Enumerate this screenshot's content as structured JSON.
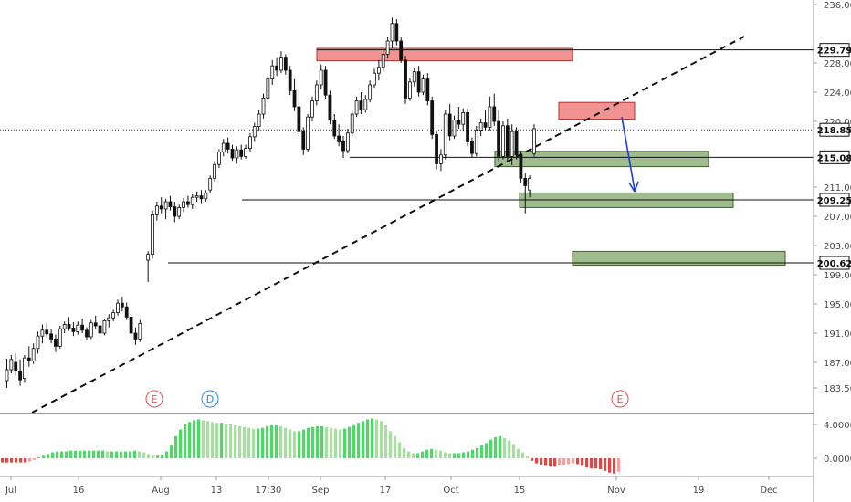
{
  "chart_data": {
    "type": "candlestick",
    "price_axis": {
      "ticks": [
        "236.00",
        "229.79",
        "228.00",
        "224.00",
        "220.00",
        "218.85",
        "215.08",
        "211.00",
        "209.25",
        "207.00",
        "203.00",
        "200.62",
        "199.00",
        "195.00",
        "191.00",
        "187.00",
        "183.50"
      ],
      "range": [
        182.5,
        236.5
      ]
    },
    "time_axis": {
      "labels": [
        "Jul",
        "16",
        "Aug",
        "13",
        "17:30",
        "Sep",
        "17",
        "Oct",
        "15",
        "Nov",
        "19",
        "Dec"
      ]
    },
    "price_levels": [
      {
        "label": "229.79",
        "value": 229.79
      },
      {
        "label": "218.85",
        "value": 218.85,
        "style": "dotted"
      },
      {
        "label": "215.08",
        "value": 215.08
      },
      {
        "label": "209.25",
        "value": 209.25
      },
      {
        "label": "200.62",
        "value": 200.62
      }
    ],
    "supply_zones": [
      {
        "low": 228.3,
        "high": 230.0
      },
      {
        "low": 220.3,
        "high": 222.6
      }
    ],
    "demand_zones": [
      {
        "low": 213.8,
        "high": 215.9
      },
      {
        "low": 208.2,
        "high": 210.2
      },
      {
        "low": 200.3,
        "high": 202.2
      }
    ],
    "trendline": {
      "from": [
        20.0,
        181.5
      ],
      "to": [
        154.0,
        230.6
      ],
      "style": "dashed"
    },
    "projection_arrow": {
      "from": [
        144.0,
        219.2
      ],
      "to": [
        146.5,
        208.9
      ],
      "color": "#1c3fd6"
    },
    "events": [
      {
        "label": "E",
        "color": "#e0505a"
      },
      {
        "label": "D",
        "color": "#2a8ee6"
      },
      {
        "label": "E",
        "color": "#e0505a"
      }
    ],
    "oscillator": {
      "ticks": [
        "4.0000",
        "0.0000"
      ],
      "range": [
        -2.5,
        5.5
      ]
    },
    "candles": [
      {
        "o": 184.5,
        "h": 187.5,
        "l": 183.5,
        "c": 186.0
      },
      {
        "o": 186.0,
        "h": 188.0,
        "l": 185.5,
        "c": 187.4
      },
      {
        "o": 187.0,
        "h": 188.3,
        "l": 185.2,
        "c": 185.8
      },
      {
        "o": 185.8,
        "h": 187.4,
        "l": 183.8,
        "c": 184.6
      },
      {
        "o": 184.8,
        "h": 188.0,
        "l": 184.2,
        "c": 187.6
      },
      {
        "o": 187.6,
        "h": 189.2,
        "l": 186.4,
        "c": 187.2
      },
      {
        "o": 187.2,
        "h": 189.6,
        "l": 186.8,
        "c": 188.9
      },
      {
        "o": 188.9,
        "h": 191.2,
        "l": 188.2,
        "c": 190.6
      },
      {
        "o": 190.6,
        "h": 192.2,
        "l": 189.6,
        "c": 191.4
      },
      {
        "o": 191.4,
        "h": 192.4,
        "l": 190.4,
        "c": 190.9
      },
      {
        "o": 190.9,
        "h": 191.6,
        "l": 189.6,
        "c": 190.2
      },
      {
        "o": 190.2,
        "h": 190.8,
        "l": 188.4,
        "c": 189.2
      },
      {
        "o": 189.2,
        "h": 192.0,
        "l": 188.9,
        "c": 191.6
      },
      {
        "o": 191.6,
        "h": 192.6,
        "l": 191.0,
        "c": 192.2
      },
      {
        "o": 192.2,
        "h": 193.2,
        "l": 191.3,
        "c": 191.7
      },
      {
        "o": 191.7,
        "h": 192.5,
        "l": 190.6,
        "c": 191.2
      },
      {
        "o": 191.2,
        "h": 192.6,
        "l": 190.8,
        "c": 192.1
      },
      {
        "o": 192.1,
        "h": 193.0,
        "l": 191.0,
        "c": 191.4
      },
      {
        "o": 191.4,
        "h": 191.8,
        "l": 190.0,
        "c": 190.5
      },
      {
        "o": 190.5,
        "h": 192.8,
        "l": 190.2,
        "c": 192.4
      },
      {
        "o": 192.4,
        "h": 193.4,
        "l": 191.6,
        "c": 192.0
      },
      {
        "o": 192.0,
        "h": 192.6,
        "l": 190.6,
        "c": 191.0
      },
      {
        "o": 191.0,
        "h": 193.0,
        "l": 190.7,
        "c": 192.7
      },
      {
        "o": 192.7,
        "h": 193.6,
        "l": 191.8,
        "c": 193.1
      },
      {
        "o": 193.1,
        "h": 194.2,
        "l": 192.6,
        "c": 193.8
      },
      {
        "o": 193.8,
        "h": 195.6,
        "l": 193.4,
        "c": 195.1
      },
      {
        "o": 195.1,
        "h": 196.0,
        "l": 194.0,
        "c": 194.6
      },
      {
        "o": 194.6,
        "h": 195.2,
        "l": 192.8,
        "c": 193.2
      },
      {
        "o": 193.2,
        "h": 193.8,
        "l": 190.6,
        "c": 191.0
      },
      {
        "o": 191.0,
        "h": 191.8,
        "l": 189.4,
        "c": 190.2
      },
      {
        "o": 190.2,
        "h": 192.8,
        "l": 189.8,
        "c": 192.3
      },
      {
        "o": 201.0,
        "h": 202.2,
        "l": 198.0,
        "c": 201.8
      },
      {
        "o": 201.8,
        "h": 207.8,
        "l": 201.2,
        "c": 207.2
      },
      {
        "o": 207.2,
        "h": 209.0,
        "l": 206.4,
        "c": 208.4
      },
      {
        "o": 208.4,
        "h": 209.6,
        "l": 207.4,
        "c": 208.0
      },
      {
        "o": 208.0,
        "h": 209.4,
        "l": 206.6,
        "c": 209.0
      },
      {
        "o": 209.0,
        "h": 209.8,
        "l": 207.8,
        "c": 208.3
      },
      {
        "o": 208.3,
        "h": 209.0,
        "l": 206.2,
        "c": 207.0
      },
      {
        "o": 207.0,
        "h": 208.6,
        "l": 206.6,
        "c": 208.2
      },
      {
        "o": 208.2,
        "h": 209.5,
        "l": 207.6,
        "c": 209.0
      },
      {
        "o": 209.0,
        "h": 209.8,
        "l": 208.2,
        "c": 208.6
      },
      {
        "o": 208.6,
        "h": 210.0,
        "l": 208.0,
        "c": 209.6
      },
      {
        "o": 209.6,
        "h": 210.4,
        "l": 209.0,
        "c": 209.8
      },
      {
        "o": 209.8,
        "h": 210.6,
        "l": 208.8,
        "c": 209.4
      },
      {
        "o": 209.4,
        "h": 210.6,
        "l": 209.0,
        "c": 210.2
      },
      {
        "o": 210.6,
        "h": 212.6,
        "l": 210.2,
        "c": 212.2
      },
      {
        "o": 212.2,
        "h": 214.6,
        "l": 211.8,
        "c": 214.1
      },
      {
        "o": 214.1,
        "h": 216.2,
        "l": 213.6,
        "c": 215.8
      },
      {
        "o": 215.8,
        "h": 217.6,
        "l": 215.2,
        "c": 217.0
      },
      {
        "o": 217.0,
        "h": 217.8,
        "l": 215.6,
        "c": 216.2
      },
      {
        "o": 216.2,
        "h": 216.8,
        "l": 214.6,
        "c": 215.0
      },
      {
        "o": 215.0,
        "h": 216.6,
        "l": 214.2,
        "c": 216.1
      },
      {
        "o": 216.1,
        "h": 216.8,
        "l": 214.8,
        "c": 215.2
      },
      {
        "o": 215.2,
        "h": 216.8,
        "l": 214.9,
        "c": 216.3
      },
      {
        "o": 216.3,
        "h": 218.4,
        "l": 215.8,
        "c": 217.9
      },
      {
        "o": 217.9,
        "h": 219.8,
        "l": 217.2,
        "c": 219.3
      },
      {
        "o": 219.3,
        "h": 221.6,
        "l": 218.6,
        "c": 221.0
      },
      {
        "o": 221.0,
        "h": 223.8,
        "l": 220.4,
        "c": 223.2
      },
      {
        "o": 223.2,
        "h": 226.2,
        "l": 222.6,
        "c": 225.8
      },
      {
        "o": 225.8,
        "h": 228.4,
        "l": 225.0,
        "c": 227.6
      },
      {
        "o": 227.6,
        "h": 228.8,
        "l": 226.2,
        "c": 227.0
      },
      {
        "o": 227.0,
        "h": 229.6,
        "l": 226.6,
        "c": 228.8
      },
      {
        "o": 228.8,
        "h": 229.2,
        "l": 226.4,
        "c": 227.0
      },
      {
        "o": 227.0,
        "h": 227.6,
        "l": 223.6,
        "c": 224.2
      },
      {
        "o": 224.2,
        "h": 225.8,
        "l": 221.4,
        "c": 222.0
      },
      {
        "o": 222.0,
        "h": 224.2,
        "l": 218.0,
        "c": 218.6
      },
      {
        "o": 218.6,
        "h": 219.2,
        "l": 215.4,
        "c": 216.2
      },
      {
        "o": 216.2,
        "h": 221.0,
        "l": 215.8,
        "c": 220.6
      },
      {
        "o": 220.6,
        "h": 223.4,
        "l": 220.0,
        "c": 222.8
      },
      {
        "o": 222.8,
        "h": 225.6,
        "l": 222.2,
        "c": 225.0
      },
      {
        "o": 225.0,
        "h": 227.8,
        "l": 224.4,
        "c": 227.0
      },
      {
        "o": 227.0,
        "h": 227.6,
        "l": 223.0,
        "c": 223.6
      },
      {
        "o": 223.6,
        "h": 224.2,
        "l": 219.6,
        "c": 220.2
      },
      {
        "o": 220.2,
        "h": 221.0,
        "l": 217.6,
        "c": 218.0
      },
      {
        "o": 218.0,
        "h": 219.6,
        "l": 216.6,
        "c": 217.2
      },
      {
        "o": 217.2,
        "h": 218.0,
        "l": 215.0,
        "c": 216.0
      },
      {
        "o": 216.0,
        "h": 219.0,
        "l": 215.6,
        "c": 218.4
      },
      {
        "o": 218.4,
        "h": 221.6,
        "l": 218.0,
        "c": 221.0
      },
      {
        "o": 221.0,
        "h": 223.4,
        "l": 220.6,
        "c": 222.8
      },
      {
        "o": 222.8,
        "h": 224.0,
        "l": 221.0,
        "c": 221.6
      },
      {
        "o": 221.6,
        "h": 223.6,
        "l": 221.2,
        "c": 223.0
      },
      {
        "o": 223.0,
        "h": 225.6,
        "l": 222.6,
        "c": 225.0
      },
      {
        "o": 225.0,
        "h": 227.2,
        "l": 224.6,
        "c": 226.6
      },
      {
        "o": 226.6,
        "h": 228.4,
        "l": 225.6,
        "c": 227.4
      },
      {
        "o": 227.4,
        "h": 229.8,
        "l": 226.8,
        "c": 229.2
      },
      {
        "o": 229.2,
        "h": 231.6,
        "l": 228.6,
        "c": 231.0
      },
      {
        "o": 231.0,
        "h": 234.2,
        "l": 230.0,
        "c": 233.4
      },
      {
        "o": 233.4,
        "h": 234.0,
        "l": 230.4,
        "c": 231.0
      },
      {
        "o": 231.0,
        "h": 231.6,
        "l": 228.0,
        "c": 228.4
      },
      {
        "o": 228.4,
        "h": 229.0,
        "l": 222.4,
        "c": 223.2
      },
      {
        "o": 223.2,
        "h": 226.0,
        "l": 222.8,
        "c": 225.4
      },
      {
        "o": 225.4,
        "h": 227.4,
        "l": 224.8,
        "c": 226.8
      },
      {
        "o": 226.8,
        "h": 227.6,
        "l": 223.4,
        "c": 224.0
      },
      {
        "o": 224.0,
        "h": 226.4,
        "l": 223.6,
        "c": 225.8
      },
      {
        "o": 225.8,
        "h": 226.6,
        "l": 222.2,
        "c": 222.8
      },
      {
        "o": 222.8,
        "h": 223.4,
        "l": 217.6,
        "c": 218.2
      },
      {
        "o": 218.2,
        "h": 218.8,
        "l": 213.4,
        "c": 214.2
      },
      {
        "o": 214.2,
        "h": 216.2,
        "l": 213.2,
        "c": 215.4
      },
      {
        "o": 215.4,
        "h": 221.6,
        "l": 214.8,
        "c": 221.0
      },
      {
        "o": 221.0,
        "h": 222.4,
        "l": 217.4,
        "c": 218.0
      },
      {
        "o": 218.0,
        "h": 220.8,
        "l": 217.6,
        "c": 220.2
      },
      {
        "o": 220.2,
        "h": 222.0,
        "l": 219.0,
        "c": 219.6
      },
      {
        "o": 219.6,
        "h": 221.8,
        "l": 218.6,
        "c": 221.2
      },
      {
        "o": 221.2,
        "h": 221.8,
        "l": 216.6,
        "c": 217.2
      },
      {
        "o": 217.2,
        "h": 217.8,
        "l": 215.0,
        "c": 215.6
      },
      {
        "o": 215.6,
        "h": 219.4,
        "l": 215.2,
        "c": 218.8
      },
      {
        "o": 218.8,
        "h": 220.4,
        "l": 218.0,
        "c": 219.8
      },
      {
        "o": 219.8,
        "h": 221.6,
        "l": 218.8,
        "c": 219.2
      },
      {
        "o": 219.2,
        "h": 223.4,
        "l": 218.8,
        "c": 222.0
      },
      {
        "o": 222.0,
        "h": 223.8,
        "l": 219.4,
        "c": 220.0
      },
      {
        "o": 220.0,
        "h": 221.6,
        "l": 214.4,
        "c": 215.2
      },
      {
        "o": 215.2,
        "h": 220.0,
        "l": 214.8,
        "c": 219.4
      },
      {
        "o": 219.4,
        "h": 220.4,
        "l": 214.6,
        "c": 215.2
      },
      {
        "o": 215.2,
        "h": 219.6,
        "l": 214.0,
        "c": 218.6
      },
      {
        "o": 218.6,
        "h": 219.2,
        "l": 214.8,
        "c": 215.4
      },
      {
        "o": 215.4,
        "h": 216.0,
        "l": 211.6,
        "c": 212.2
      },
      {
        "o": 212.2,
        "h": 213.0,
        "l": 207.4,
        "c": 211.2
      },
      {
        "o": 210.6,
        "h": 212.6,
        "l": 209.6,
        "c": 212.2
      },
      {
        "o": 215.6,
        "h": 219.6,
        "l": 215.2,
        "c": 219.0
      }
    ],
    "oscillator_values": [
      -0.5,
      -0.5,
      -0.5,
      -0.5,
      -0.5,
      -0.5,
      -0.4,
      -0.2,
      0.1,
      0.3,
      0.5,
      0.7,
      0.8,
      0.8,
      0.8,
      0.9,
      0.9,
      0.9,
      0.9,
      0.9,
      0.9,
      0.9,
      0.9,
      0.8,
      0.8,
      0.8,
      0.8,
      0.8,
      0.8,
      0.9,
      0.8,
      0.7,
      0.5,
      0.3,
      0.3,
      0.4,
      0.8,
      1.5,
      2.6,
      3.4,
      4.0,
      4.3,
      4.5,
      4.6,
      4.5,
      4.4,
      4.3,
      4.2,
      4.2,
      4.1,
      4.0,
      3.9,
      3.8,
      3.7,
      3.6,
      3.5,
      3.5,
      3.6,
      3.8,
      3.9,
      3.9,
      3.8,
      3.6,
      3.4,
      3.2,
      3.2,
      3.4,
      3.6,
      3.7,
      3.8,
      3.8,
      3.7,
      3.6,
      3.5,
      3.4,
      3.5,
      3.7,
      3.9,
      4.2,
      4.4,
      4.6,
      4.7,
      4.6,
      4.4,
      3.9,
      3.2,
      2.6,
      1.9,
      1.2,
      0.8,
      0.6,
      0.6,
      0.8,
      1.0,
      1.1,
      1.0,
      0.9,
      0.7,
      0.6,
      0.6,
      0.6,
      0.7,
      0.8,
      1.0,
      1.2,
      1.5,
      1.8,
      2.2,
      2.5,
      2.6,
      2.4,
      2.1,
      1.6,
      1.1,
      0.7,
      0.2,
      -0.3,
      -0.6,
      -0.8,
      -0.9,
      -1.0,
      -1.0,
      -0.9,
      -0.8,
      -0.7,
      -0.6,
      -0.7,
      -0.9,
      -1.1,
      -1.2,
      -1.2,
      -1.3,
      -1.5,
      -1.7,
      -1.8,
      -1.6
    ]
  }
}
